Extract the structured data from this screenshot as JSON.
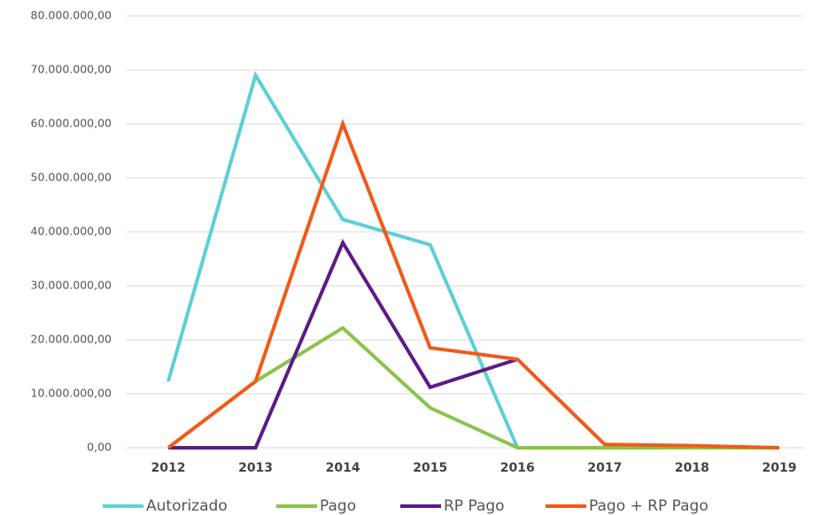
{
  "chart_data": {
    "type": "line",
    "title": "",
    "xlabel": "",
    "ylabel": "",
    "categories": [
      "2012",
      "2013",
      "2014",
      "2015",
      "2016",
      "2017",
      "2018",
      "2019"
    ],
    "ylim": [
      0,
      80000000
    ],
    "yticks": [
      0,
      10000000,
      20000000,
      30000000,
      40000000,
      50000000,
      60000000,
      70000000,
      80000000
    ],
    "ytick_labels": [
      "0,00",
      "10.000.000,00",
      "20.000.000,00",
      "30.000.000,00",
      "40.000.000,00",
      "50.000.000,00",
      "60.000.000,00",
      "70.000.000,00",
      "80.000.000,00"
    ],
    "grid": true,
    "legend_position": "bottom",
    "series": [
      {
        "name": "Autorizado",
        "color": "#5ccfd6",
        "values": [
          12300000,
          69000000,
          42300000,
          37600000,
          0,
          null,
          null,
          null
        ]
      },
      {
        "name": "Pago",
        "color": "#8bc34a",
        "values": [
          null,
          12300000,
          22200000,
          7400000,
          0,
          0,
          0,
          0
        ]
      },
      {
        "name": "RP Pago",
        "color": "#5c1a86",
        "values": [
          0,
          0,
          38000000,
          11200000,
          16400000,
          null,
          null,
          null
        ]
      },
      {
        "name": "Pago + RP Pago",
        "color": "#f05a1a",
        "values": [
          0,
          12300000,
          60000000,
          18500000,
          16400000,
          600000,
          400000,
          0
        ]
      }
    ]
  }
}
